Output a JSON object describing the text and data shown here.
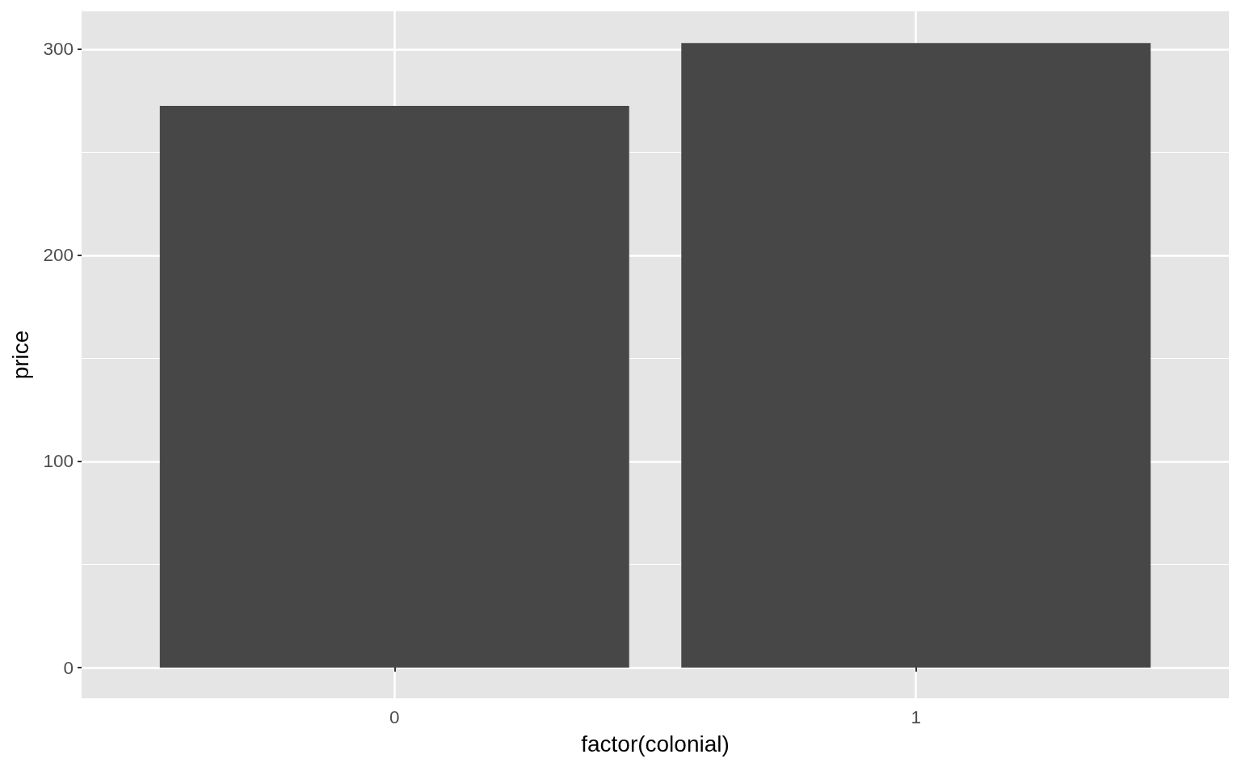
{
  "chart_data": {
    "type": "bar",
    "xlabel": "factor(colonial)",
    "ylabel": "price",
    "categories": [
      "0",
      "1"
    ],
    "values": [
      272.5,
      303
    ],
    "color": "#474747",
    "ylim": [
      -14.9,
      318.4
    ],
    "yticks": [
      0,
      100,
      200,
      300
    ],
    "grid": true
  }
}
